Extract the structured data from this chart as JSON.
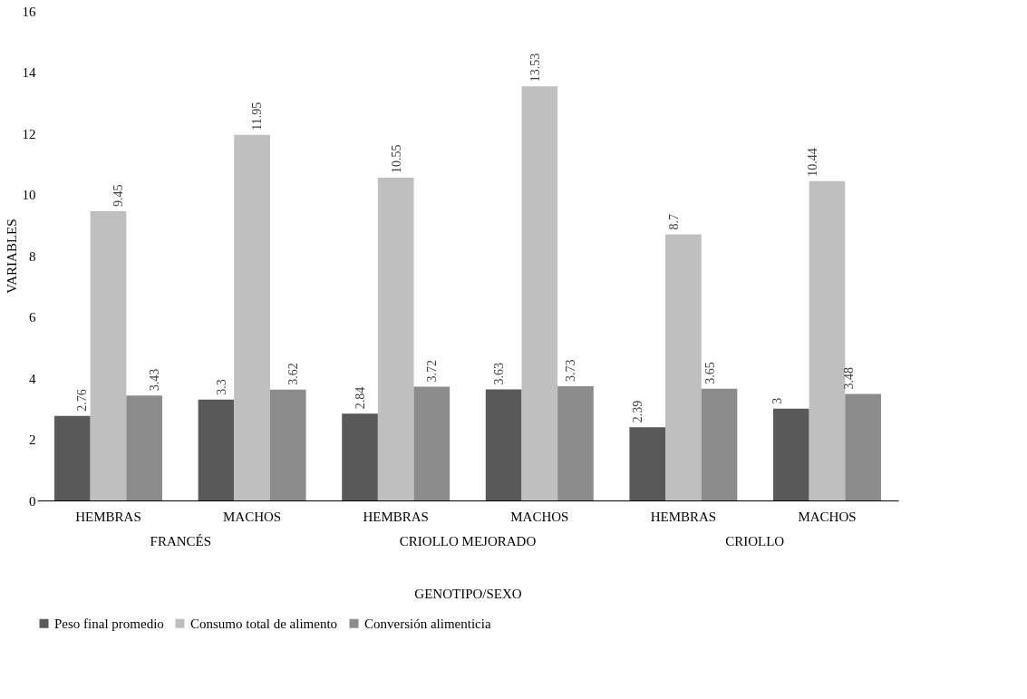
{
  "chart_data": {
    "type": "bar",
    "xlabel": "GENOTIPO/SEXO",
    "ylabel": "VARIABLES",
    "categories": [
      "HEMBRAS",
      "MACHOS",
      "HEMBRAS",
      "MACHOS",
      "HEMBRAS",
      "MACHOS"
    ],
    "series": [
      {
        "name": "Peso final promedio",
        "color": "#595959",
        "values": [
          2.76,
          3.3,
          2.84,
          3.63,
          2.39,
          3
        ]
      },
      {
        "name": "Consumo total de alimento",
        "color": "#bfbfbf",
        "values": [
          9.45,
          11.95,
          10.55,
          13.53,
          8.7,
          10.44
        ]
      },
      {
        "name": "Conversión alimenticia",
        "color": "#8c8c8c",
        "values": [
          3.43,
          3.62,
          3.72,
          3.73,
          3.65,
          3.48
        ]
      }
    ],
    "annotations": [
      "FRANCÉS",
      "CRIOLLO MEJORADO",
      "CRIOLLO"
    ],
    "ylim": [
      0,
      16
    ],
    "yticks": [
      0,
      2,
      4,
      6,
      8,
      10,
      12,
      14,
      16
    ],
    "grid": false,
    "legend": "bottom",
    "data_labels": true
  }
}
